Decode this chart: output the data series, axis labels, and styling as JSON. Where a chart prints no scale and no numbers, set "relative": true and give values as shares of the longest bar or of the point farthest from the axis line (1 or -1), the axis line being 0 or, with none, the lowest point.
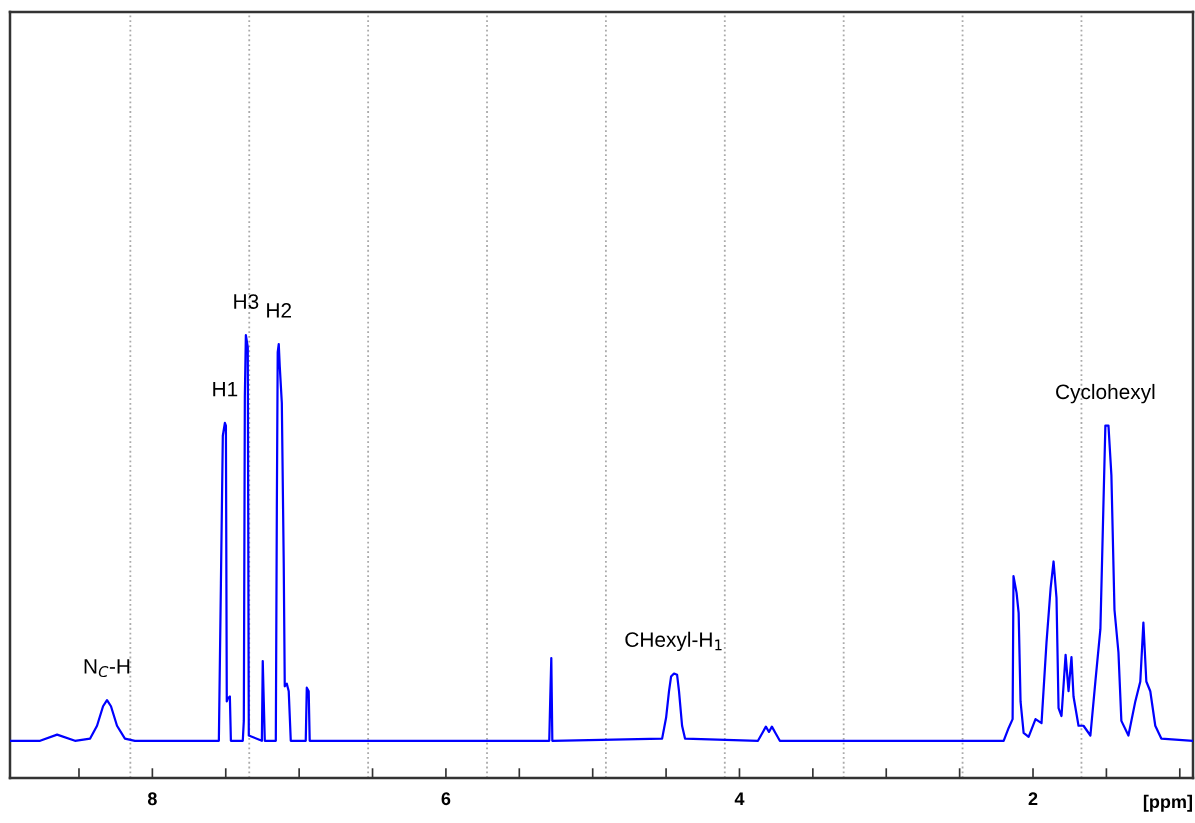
{
  "chart_data": {
    "type": "line",
    "relative": true,
    "xlabel": "[ppm]",
    "xlim": [
      8.97,
      0.91
    ],
    "xticks": [
      {
        "value": 8.5,
        "label": null
      },
      8,
      {
        "value": 7.5,
        "label": null
      },
      {
        "value": 7,
        "label": null
      },
      {
        "value": 6.5,
        "label": null
      },
      6,
      {
        "value": 5.5,
        "label": null
      },
      {
        "value": 5,
        "label": null
      },
      {
        "value": 4.5,
        "label": null
      },
      4,
      {
        "value": 3.5,
        "label": null
      },
      {
        "value": 3,
        "label": null
      },
      {
        "value": 2.5,
        "label": null
      },
      2,
      {
        "value": 1.5,
        "label": null
      },
      {
        "value": 1,
        "label": null
      }
    ],
    "grid": false,
    "legend": false,
    "marker": "none",
    "line_style": "solid",
    "ref_lines": [
      {
        "axis": "x",
        "value": 8.15,
        "color": "#aaaaaa",
        "line_style": "dotted"
      },
      {
        "axis": "x",
        "value": 7.34,
        "color": "#aaaaaa",
        "line_style": "dotted"
      },
      {
        "axis": "x",
        "value": 6.53,
        "color": "#aaaaaa",
        "line_style": "dotted"
      },
      {
        "axis": "x",
        "value": 5.72,
        "color": "#aaaaaa",
        "line_style": "dotted"
      },
      {
        "axis": "x",
        "value": 4.91,
        "color": "#aaaaaa",
        "line_style": "dotted"
      },
      {
        "axis": "x",
        "value": 4.1,
        "color": "#aaaaaa",
        "line_style": "dotted"
      },
      {
        "axis": "x",
        "value": 3.29,
        "color": "#aaaaaa",
        "line_style": "dotted"
      },
      {
        "axis": "x",
        "value": 2.48,
        "color": "#aaaaaa",
        "line_style": "dotted"
      },
      {
        "axis": "x",
        "value": 1.67,
        "color": "#aaaaaa",
        "line_style": "dotted"
      }
    ],
    "annotations": [
      {
        "text": "N$_{C}$-H",
        "x": 8.309,
        "y": 0.176
      },
      {
        "text": "H1",
        "x": 7.506,
        "y": 0.802
      },
      {
        "text": "H3",
        "x": 7.363,
        "y": 1.0
      },
      {
        "text": "H2",
        "x": 7.139,
        "y": 0.98
      },
      {
        "text": "CHexyl-H$_{1}$",
        "x": 4.446,
        "y": 0.236
      },
      {
        "text": "Cyclohexyl",
        "x": 1.507,
        "y": 0.796
      }
    ],
    "series": [
      {
        "color": "#0000ff",
        "x": [
          8.97,
          8.765,
          8.649,
          8.527,
          8.424,
          8.377,
          8.336,
          8.309,
          8.282,
          8.241,
          8.187,
          8.119,
          7.547,
          7.533,
          7.52,
          7.506,
          7.499,
          7.493,
          7.486,
          7.472,
          7.465,
          7.384,
          7.377,
          7.37,
          7.363,
          7.35,
          7.343,
          7.254,
          7.248,
          7.241,
          7.234,
          7.159,
          7.152,
          7.146,
          7.139,
          7.132,
          7.118,
          7.105,
          7.098,
          7.084,
          7.071,
          7.057,
          6.955,
          6.948,
          6.935,
          6.928,
          5.296,
          5.289,
          5.282,
          5.275,
          4.527,
          4.5,
          4.48,
          4.466,
          4.446,
          4.425,
          4.412,
          4.391,
          4.371,
          3.874,
          3.847,
          3.82,
          3.799,
          3.779,
          3.752,
          3.725,
          2.2,
          2.166,
          2.139,
          2.133,
          2.112,
          2.098,
          2.085,
          2.064,
          2.03,
          1.983,
          1.942,
          1.908,
          1.88,
          1.86,
          1.84,
          1.826,
          1.806,
          1.778,
          1.758,
          1.738,
          1.724,
          1.69,
          1.656,
          1.609,
          1.575,
          1.541,
          1.507,
          1.486,
          1.466,
          1.445,
          1.418,
          1.398,
          1.35,
          1.303,
          1.269,
          1.248,
          1.228,
          1.201,
          1.167,
          1.126,
          0.91
        ],
        "values": [
          0.084,
          0.084,
          0.098,
          0.084,
          0.089,
          0.118,
          0.162,
          0.176,
          0.162,
          0.118,
          0.089,
          0.084,
          0.084,
          0.44,
          0.773,
          0.802,
          0.796,
          0.173,
          0.18,
          0.184,
          0.084,
          0.084,
          0.129,
          0.862,
          1.0,
          0.973,
          0.096,
          0.084,
          0.264,
          0.173,
          0.084,
          0.084,
          0.607,
          0.962,
          0.98,
          0.929,
          0.847,
          0.484,
          0.207,
          0.213,
          0.196,
          0.084,
          0.084,
          0.204,
          0.196,
          0.084,
          0.084,
          0.182,
          0.271,
          0.084,
          0.089,
          0.136,
          0.196,
          0.229,
          0.236,
          0.233,
          0.196,
          0.118,
          0.089,
          0.084,
          0.1,
          0.116,
          0.104,
          0.116,
          0.1,
          0.084,
          0.084,
          0.113,
          0.133,
          0.456,
          0.418,
          0.373,
          0.173,
          0.102,
          0.093,
          0.133,
          0.124,
          0.307,
          0.429,
          0.489,
          0.407,
          0.158,
          0.14,
          0.278,
          0.196,
          0.273,
          0.184,
          0.118,
          0.118,
          0.096,
          0.218,
          0.336,
          0.796,
          0.796,
          0.684,
          0.38,
          0.284,
          0.129,
          0.096,
          0.173,
          0.218,
          0.351,
          0.218,
          0.196,
          0.118,
          0.089,
          0.084
        ]
      }
    ]
  }
}
